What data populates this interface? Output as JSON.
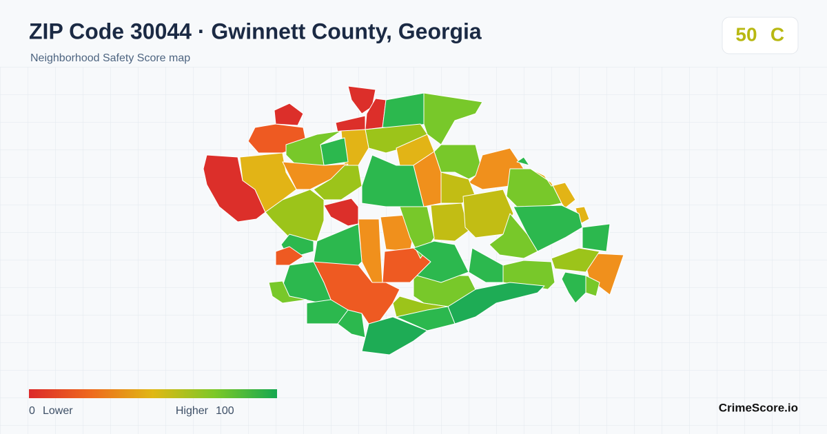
{
  "header": {
    "title": "ZIP Code 30044 · Gwinnett County, Georgia",
    "subtitle": "Neighborhood Safety Score map"
  },
  "score": {
    "value": 50,
    "grade": "C"
  },
  "legend": {
    "min": 0,
    "min_label": "Lower",
    "max_label": "Higher",
    "max": 100
  },
  "brand": "CrimeScore.io"
}
